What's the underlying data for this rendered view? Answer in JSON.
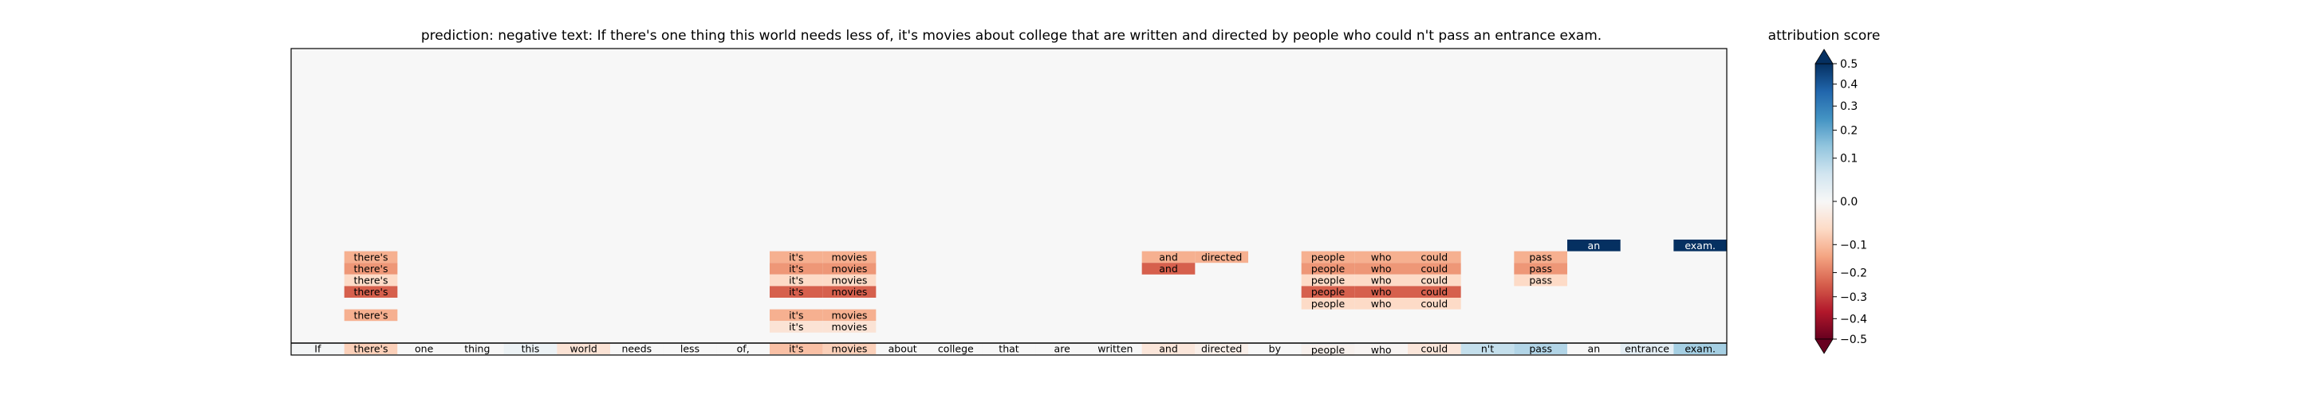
{
  "header": {
    "title": "prediction:  negative     text:  If there's one thing this world needs less of, it's movies about college that are written and directed by people who could n't pass an entrance exam."
  },
  "colorbar": {
    "title": "attribution score"
  },
  "chart_data": {
    "type": "heatmap",
    "prediction": "negative",
    "tokens": [
      "If",
      "there's",
      "one",
      "thing",
      "this",
      "world",
      "needs",
      "less",
      "of,",
      "it's",
      "movies",
      "about",
      "college",
      "that",
      "are",
      "written",
      "and",
      "directed",
      "by",
      "people",
      "who",
      "could",
      "n't",
      "pass",
      "an",
      "entrance",
      "exam."
    ],
    "base_scores": [
      0.01,
      -0.12,
      0.0,
      0.0,
      0.03,
      -0.07,
      0.0,
      0.0,
      0.0,
      -0.15,
      -0.12,
      0.0,
      0.0,
      0.0,
      0.0,
      0.0,
      -0.06,
      -0.03,
      0.0,
      0.07,
      0.02,
      -0.06,
      0.12,
      0.15,
      0.0,
      0.05,
      0.17
    ],
    "upper_rows": [
      {
        "row": 0,
        "cells": [
          {
            "token": 24,
            "score": 0.5
          },
          {
            "token": 26,
            "score": 0.5
          }
        ]
      },
      {
        "row": 1,
        "cells": [
          {
            "token": 1,
            "score": -0.18
          },
          {
            "token": 9,
            "score": -0.18
          },
          {
            "token": 10,
            "score": -0.18
          },
          {
            "token": 16,
            "score": -0.18
          },
          {
            "token": 17,
            "score": -0.18
          },
          {
            "token": 19,
            "score": -0.18
          },
          {
            "token": 20,
            "score": -0.18
          },
          {
            "token": 21,
            "score": -0.18
          },
          {
            "token": 23,
            "score": -0.18
          }
        ]
      },
      {
        "row": 2,
        "cells": [
          {
            "token": 1,
            "score": -0.22
          },
          {
            "token": 9,
            "score": -0.22
          },
          {
            "token": 10,
            "score": -0.22
          },
          {
            "token": 16,
            "score": -0.3
          },
          {
            "token": 19,
            "score": -0.22
          },
          {
            "token": 20,
            "score": -0.22
          },
          {
            "token": 21,
            "score": -0.22
          },
          {
            "token": 23,
            "score": -0.22
          }
        ]
      },
      {
        "row": 3,
        "cells": [
          {
            "token": 1,
            "score": -0.1
          },
          {
            "token": 9,
            "score": -0.1
          },
          {
            "token": 10,
            "score": -0.1
          },
          {
            "token": 19,
            "score": -0.1
          },
          {
            "token": 20,
            "score": -0.1
          },
          {
            "token": 21,
            "score": -0.1
          },
          {
            "token": 23,
            "score": -0.1
          }
        ]
      },
      {
        "row": 4,
        "cells": [
          {
            "token": 1,
            "score": -0.3
          },
          {
            "token": 9,
            "score": -0.3
          },
          {
            "token": 10,
            "score": -0.3
          },
          {
            "token": 19,
            "score": -0.3
          },
          {
            "token": 20,
            "score": -0.3
          },
          {
            "token": 21,
            "score": -0.3
          }
        ]
      },
      {
        "row": 5,
        "cells": [
          {
            "token": 19,
            "score": -0.1
          },
          {
            "token": 20,
            "score": -0.1
          },
          {
            "token": 21,
            "score": -0.1
          }
        ]
      },
      {
        "row": 6,
        "cells": [
          {
            "token": 1,
            "score": -0.18
          },
          {
            "token": 9,
            "score": -0.18
          },
          {
            "token": 10,
            "score": -0.18
          }
        ]
      },
      {
        "row": 7,
        "cells": [
          {
            "token": 9,
            "score": -0.07
          },
          {
            "token": 10,
            "score": -0.07
          }
        ]
      },
      {
        "row": 8,
        "cells": []
      },
      {
        "row": 9,
        "cells": [
          {
            "token": 19,
            "score": -0.02
          },
          {
            "token": 20,
            "score": -0.01
          }
        ]
      }
    ],
    "colorbar_ticks": [
      0.5,
      0.4,
      0.3,
      0.2,
      0.1,
      0.0,
      -0.1,
      -0.2,
      -0.3,
      -0.4,
      -0.5
    ],
    "colorbar_range": [
      -0.5,
      0.5
    ],
    "colorbar_extend": "both"
  },
  "colors": {
    "cmap": [
      "#67001f",
      "#b2182b",
      "#d6604d",
      "#f4a582",
      "#fddbc7",
      "#f7f7f7",
      "#d1e5f0",
      "#92c5de",
      "#4393c3",
      "#2166ac",
      "#053061"
    ],
    "plot_background": "#f7f7f7"
  }
}
